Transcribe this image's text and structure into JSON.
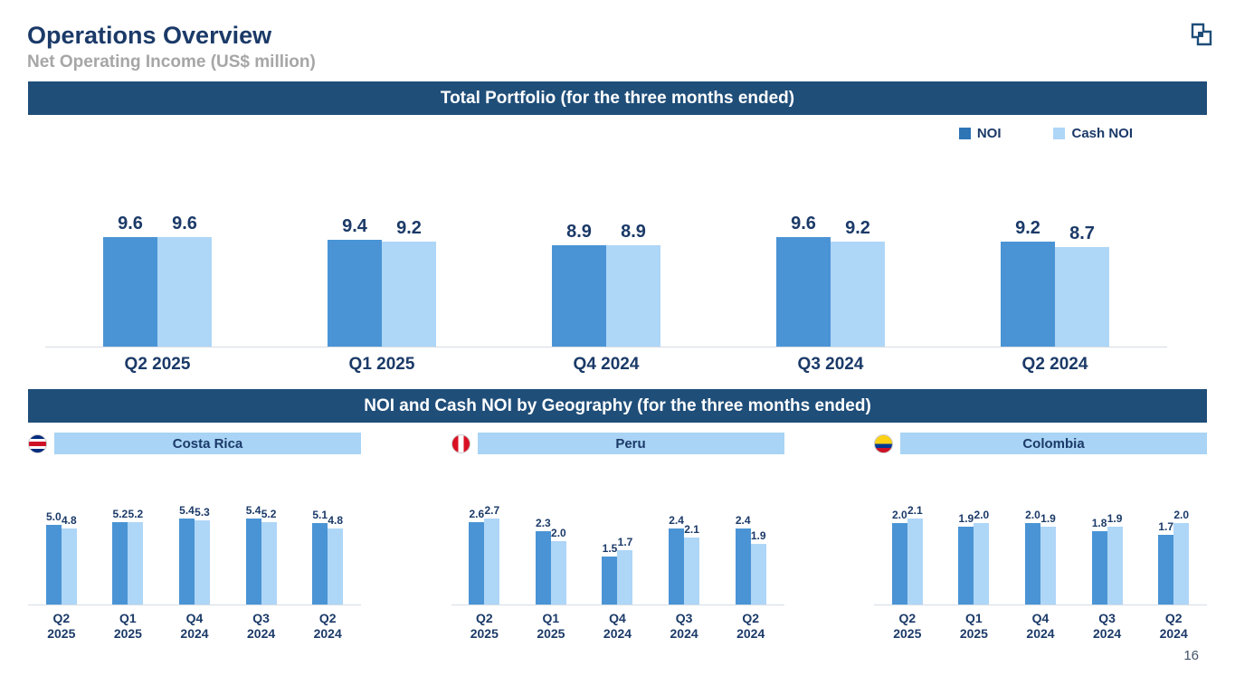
{
  "slide": {
    "title": "Operations Overview",
    "subtitle": "Net Operating Income (US$ million)",
    "page_number": "16"
  },
  "banners": {
    "total_portfolio": "Total Portfolio (for the three months ended)",
    "geography": "NOI and Cash NOI by Geography (for the three months ended)"
  },
  "legend": {
    "items": [
      {
        "label": "NOI",
        "color": "#2e75b6"
      },
      {
        "label": "Cash NOI",
        "color": "#aed6f7"
      }
    ],
    "position": "top-right"
  },
  "colors": {
    "banner_bg": "#1f4e79",
    "title_text": "#1b3a68",
    "subtitle_text": "#a6a6a6",
    "noi_bar": "#4a94d5",
    "cash_noi_bar": "#aed6f7",
    "geo_header_bg": "#a9d4f5"
  },
  "chart_data": [
    {
      "id": "total",
      "type": "bar",
      "title": "Total Portfolio (for the three months ended)",
      "categories": [
        "Q2 2025",
        "Q1 2025",
        "Q4 2024",
        "Q3 2024",
        "Q2 2024"
      ],
      "series": [
        {
          "name": "NOI",
          "values": [
            9.6,
            9.4,
            8.9,
            9.6,
            9.2
          ]
        },
        {
          "name": "Cash NOI",
          "values": [
            9.6,
            9.2,
            8.9,
            9.2,
            8.7
          ]
        }
      ],
      "ylabel": "",
      "grid": false,
      "legend_position": "top-right",
      "data_labels": true
    },
    {
      "id": "costa-rica",
      "type": "bar",
      "title": "Costa Rica",
      "categories": [
        "Q2 2025",
        "Q1 2025",
        "Q4 2024",
        "Q3 2024",
        "Q2 2024"
      ],
      "series": [
        {
          "name": "NOI",
          "values": [
            5.0,
            5.2,
            5.4,
            5.4,
            5.1
          ]
        },
        {
          "name": "Cash NOI",
          "values": [
            4.8,
            5.2,
            5.3,
            5.2,
            4.8
          ]
        }
      ],
      "grid": false,
      "data_labels": true
    },
    {
      "id": "peru",
      "type": "bar",
      "title": "Peru",
      "categories": [
        "Q2 2025",
        "Q1 2025",
        "Q4 2024",
        "Q3 2024",
        "Q2 2024"
      ],
      "series": [
        {
          "name": "NOI",
          "values": [
            2.6,
            2.3,
            1.5,
            2.4,
            2.4
          ]
        },
        {
          "name": "Cash NOI",
          "values": [
            2.7,
            2.0,
            1.7,
            2.1,
            1.9
          ]
        }
      ],
      "grid": false,
      "data_labels": true
    },
    {
      "id": "colombia",
      "type": "bar",
      "title": "Colombia",
      "categories": [
        "Q2 2025",
        "Q1 2025",
        "Q4 2024",
        "Q3 2024",
        "Q2 2024"
      ],
      "series": [
        {
          "name": "NOI",
          "values": [
            2.0,
            1.9,
            2.0,
            1.8,
            1.7
          ]
        },
        {
          "name": "Cash NOI",
          "values": [
            2.1,
            2.0,
            1.9,
            1.9,
            2.0
          ]
        }
      ],
      "grid": false,
      "data_labels": true
    }
  ]
}
